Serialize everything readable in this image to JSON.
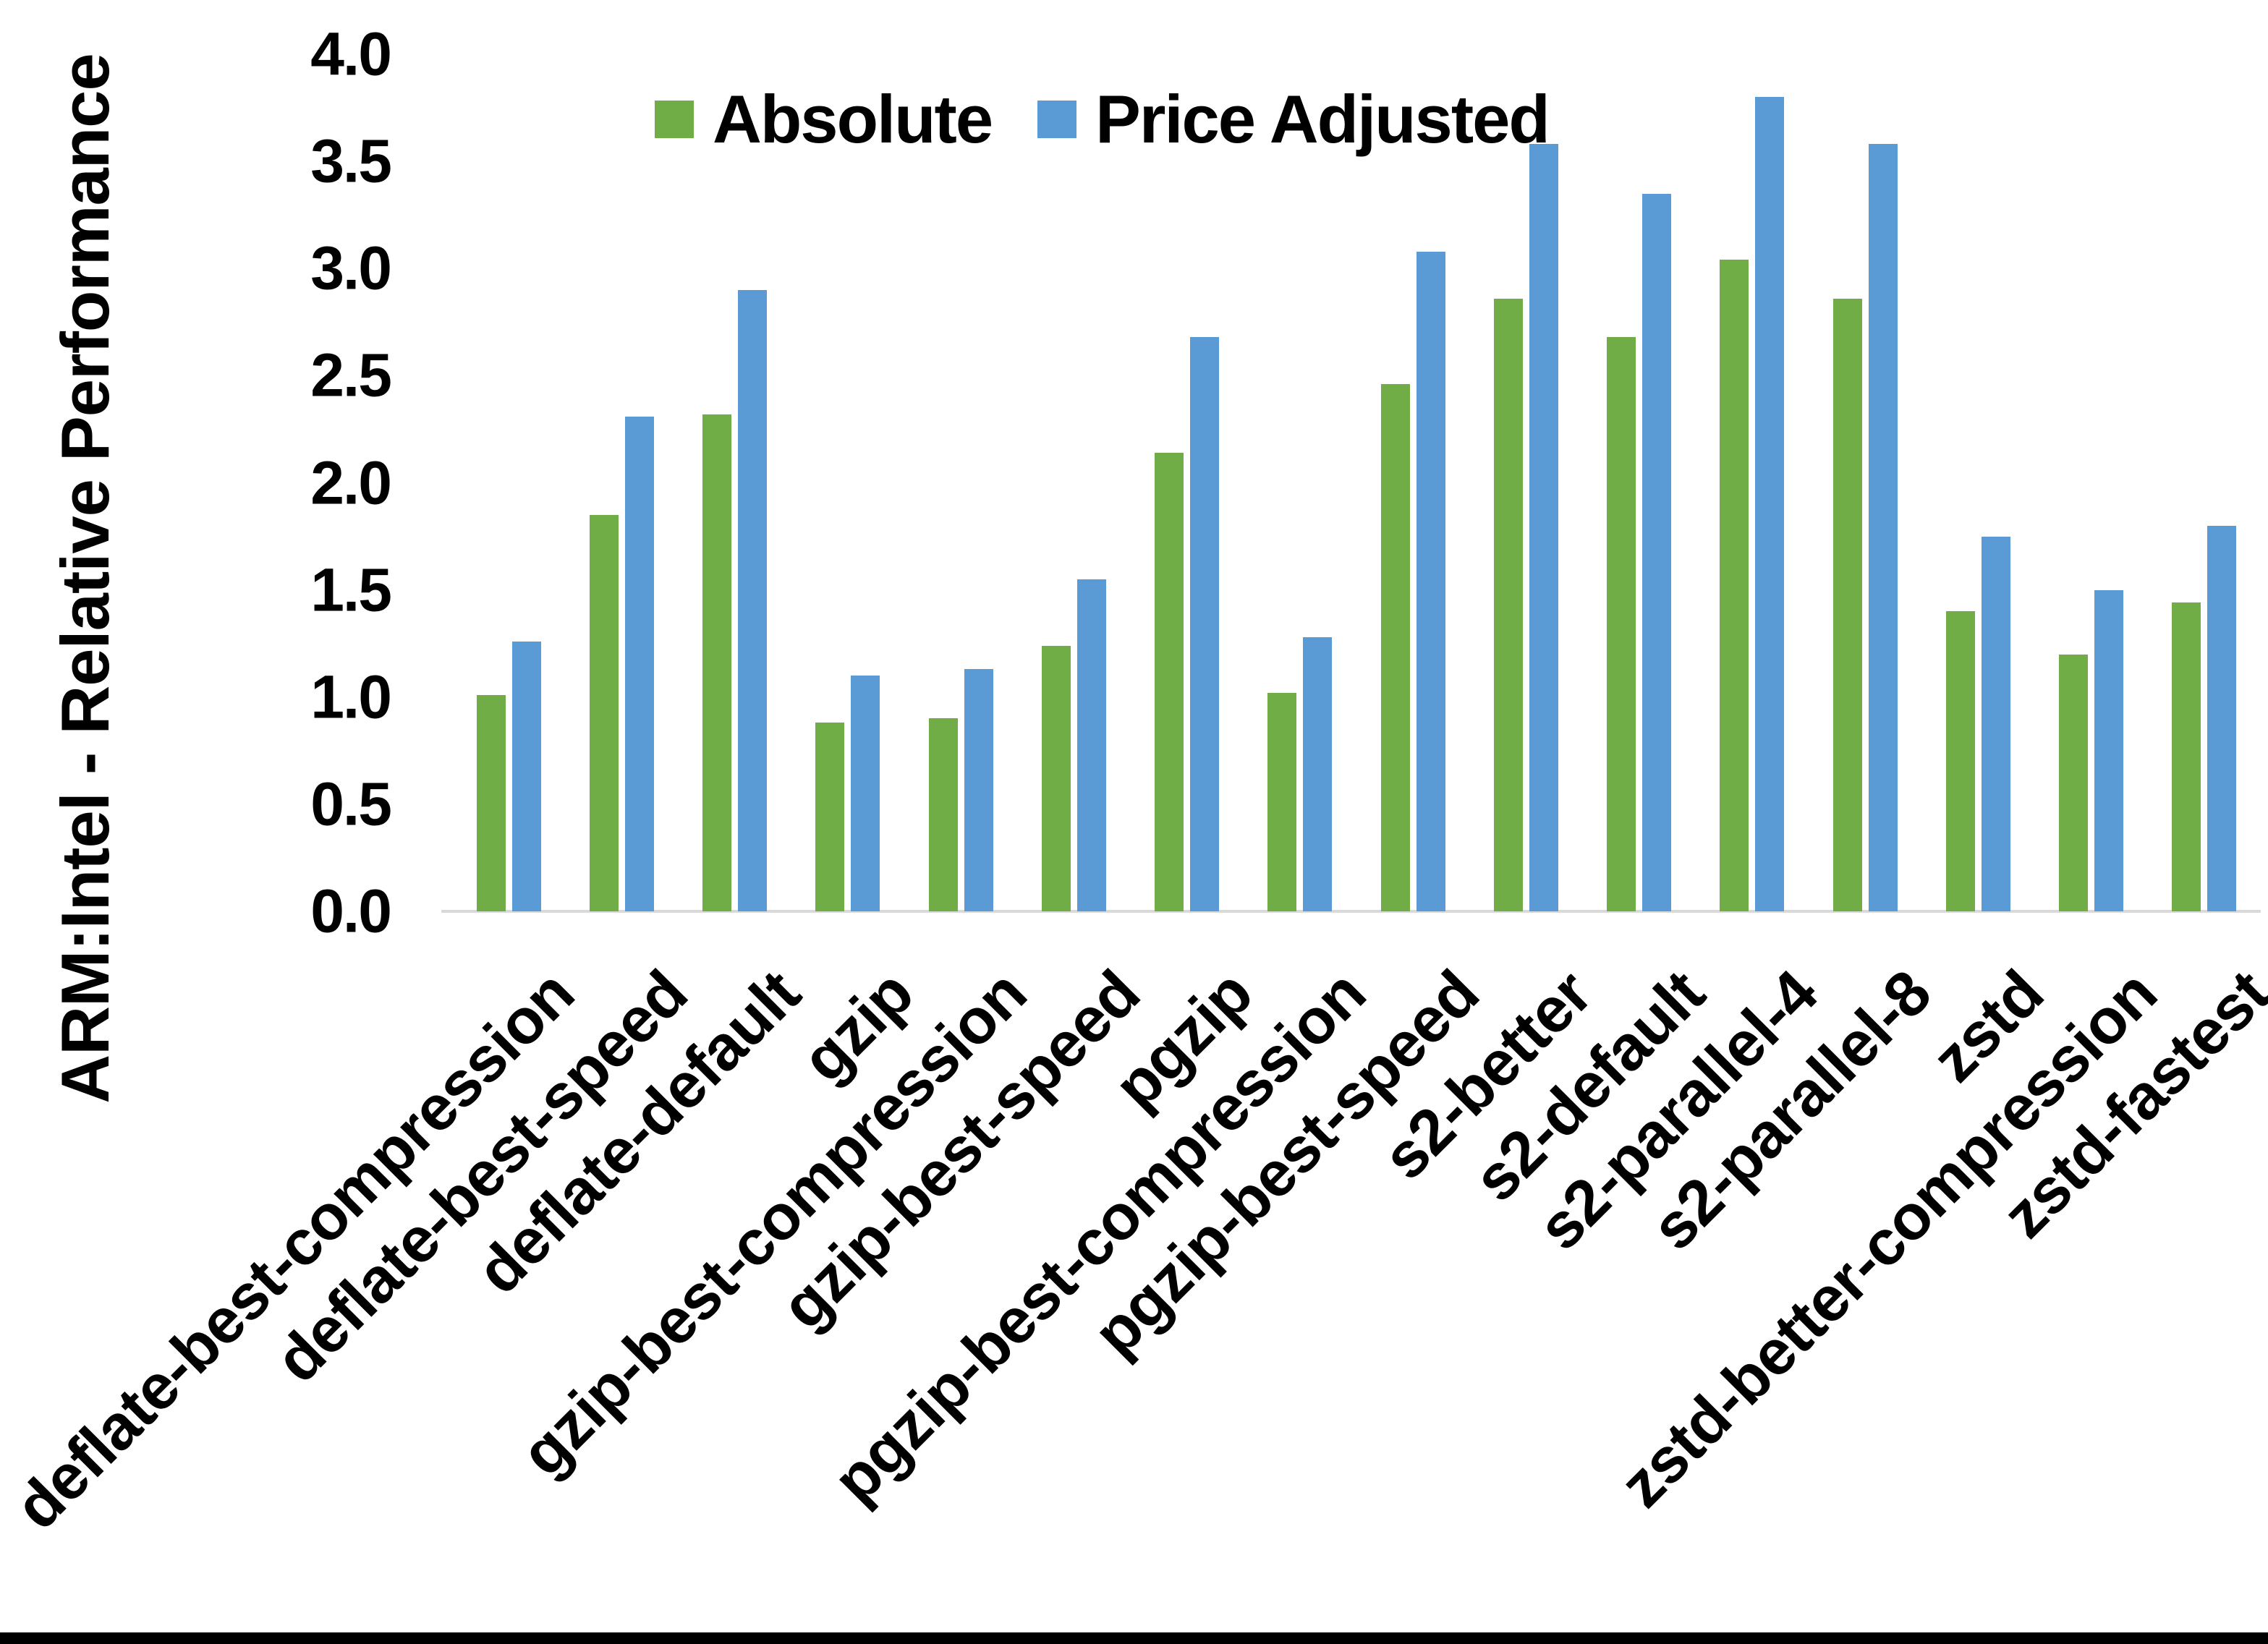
{
  "chart_data": {
    "type": "bar",
    "title": "",
    "ylabel": "ARM:Intel - Relative Performance",
    "xlabel": "",
    "ylim": [
      0.0,
      4.0
    ],
    "ytick_step": 0.5,
    "yticks": [
      "0.0",
      "0.5",
      "1.0",
      "1.5",
      "2.0",
      "2.5",
      "3.0",
      "3.5",
      "4.0"
    ],
    "grid": false,
    "legend_position": "top",
    "categories": [
      "deflate-best-compression",
      "deflate-best-speed",
      "deflate-default",
      "gzip",
      "gzip-best-compression",
      "gzip-best-speed",
      "pgzip",
      "pgzip-best-compression",
      "pgzip-best-speed",
      "s2-better",
      "s2-default",
      "s2-parallel-4",
      "s2-parallel-8",
      "zstd",
      "zstd-better-compression",
      "zstd-fastest"
    ],
    "series": [
      {
        "name": "Absolute",
        "color": "#70AD47",
        "values": [
          1.01,
          1.85,
          2.32,
          0.88,
          0.9,
          1.24,
          2.14,
          1.02,
          2.46,
          2.86,
          2.68,
          3.04,
          2.86,
          1.4,
          1.2,
          1.44
        ]
      },
      {
        "name": "Price Adjusted",
        "color": "#5B9BD5",
        "values": [
          1.26,
          2.31,
          2.9,
          1.1,
          1.13,
          1.55,
          2.68,
          1.28,
          3.08,
          3.58,
          3.35,
          3.8,
          3.58,
          1.75,
          1.5,
          1.8
        ]
      }
    ]
  },
  "legend": {
    "items": [
      {
        "label": "Absolute",
        "color": "#70AD47"
      },
      {
        "label": "Price Adjusted",
        "color": "#5B9BD5"
      }
    ]
  },
  "y_axis": {
    "title": "ARM:Intel - Relative Performance"
  },
  "colors": {
    "axis_line": "#d9d9d9",
    "text": "#000000",
    "bottom_border": "#000000"
  }
}
